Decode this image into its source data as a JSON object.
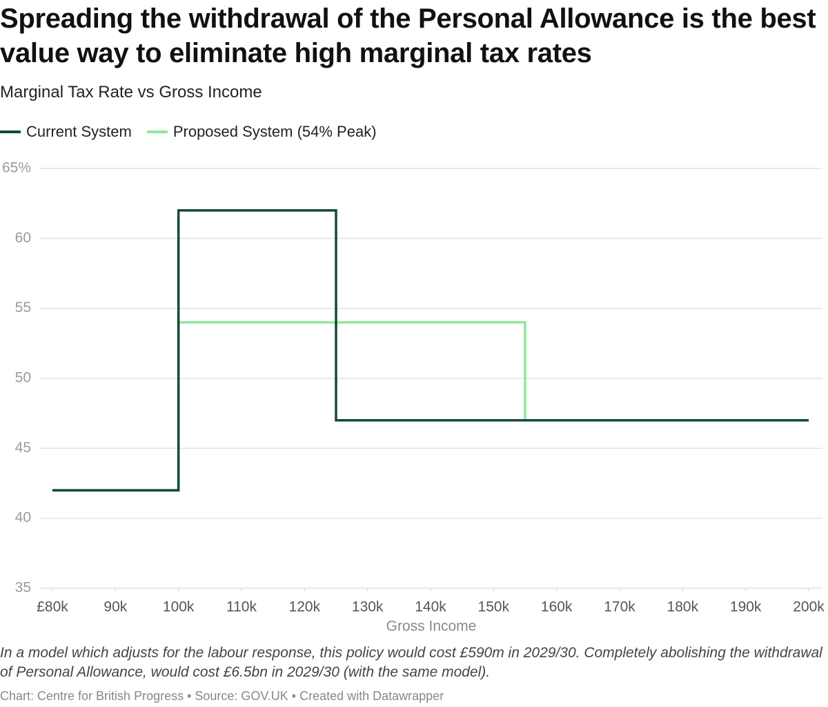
{
  "chart_data": {
    "type": "line",
    "title": "Spreading the withdrawal of the Personal Allowance is the best value way to eliminate high marginal tax rates",
    "subtitle": "Marginal Tax Rate vs Gross Income",
    "x_label": "Gross Income",
    "notes": "In a model which adjusts for the labour response, this policy would cost £590m in 2029/30. Completely abolishing the withdrawal of Personal Allowance, would cost £6.5bn in 2029/30 (with the same model).",
    "source": "Chart: Centre for British Progress • Source: GOV.UK • Created with Datawrapper",
    "series": [
      {
        "name": "Current System",
        "color": "#124a36",
        "x": [
          80000,
          100000,
          100000,
          125000,
          125000,
          200000
        ],
        "values": [
          42,
          42,
          62,
          62,
          47,
          47
        ]
      },
      {
        "name": "Proposed System (54% Peak)",
        "color": "#8de99b",
        "x": [
          80000,
          100000,
          100000,
          155000,
          155000,
          200000
        ],
        "values": [
          42,
          42,
          54,
          54,
          47,
          47
        ]
      }
    ],
    "xlim": [
      80000,
      200000
    ],
    "xticks": [
      {
        "value": 80000,
        "label": "£80k"
      },
      {
        "value": 90000,
        "label": "90k"
      },
      {
        "value": 100000,
        "label": "100k"
      },
      {
        "value": 110000,
        "label": "110k"
      },
      {
        "value": 120000,
        "label": "120k"
      },
      {
        "value": 130000,
        "label": "130k"
      },
      {
        "value": 140000,
        "label": "140k"
      },
      {
        "value": 150000,
        "label": "150k"
      },
      {
        "value": 160000,
        "label": "160k"
      },
      {
        "value": 170000,
        "label": "170k"
      },
      {
        "value": 180000,
        "label": "180k"
      },
      {
        "value": 190000,
        "label": "190k"
      },
      {
        "value": 200000,
        "label": "200k"
      }
    ],
    "ylim": [
      35,
      65
    ],
    "yticks": [
      35,
      40,
      45,
      50,
      55,
      60,
      {
        "value": 65,
        "label": "65%"
      }
    ],
    "grid": true
  }
}
